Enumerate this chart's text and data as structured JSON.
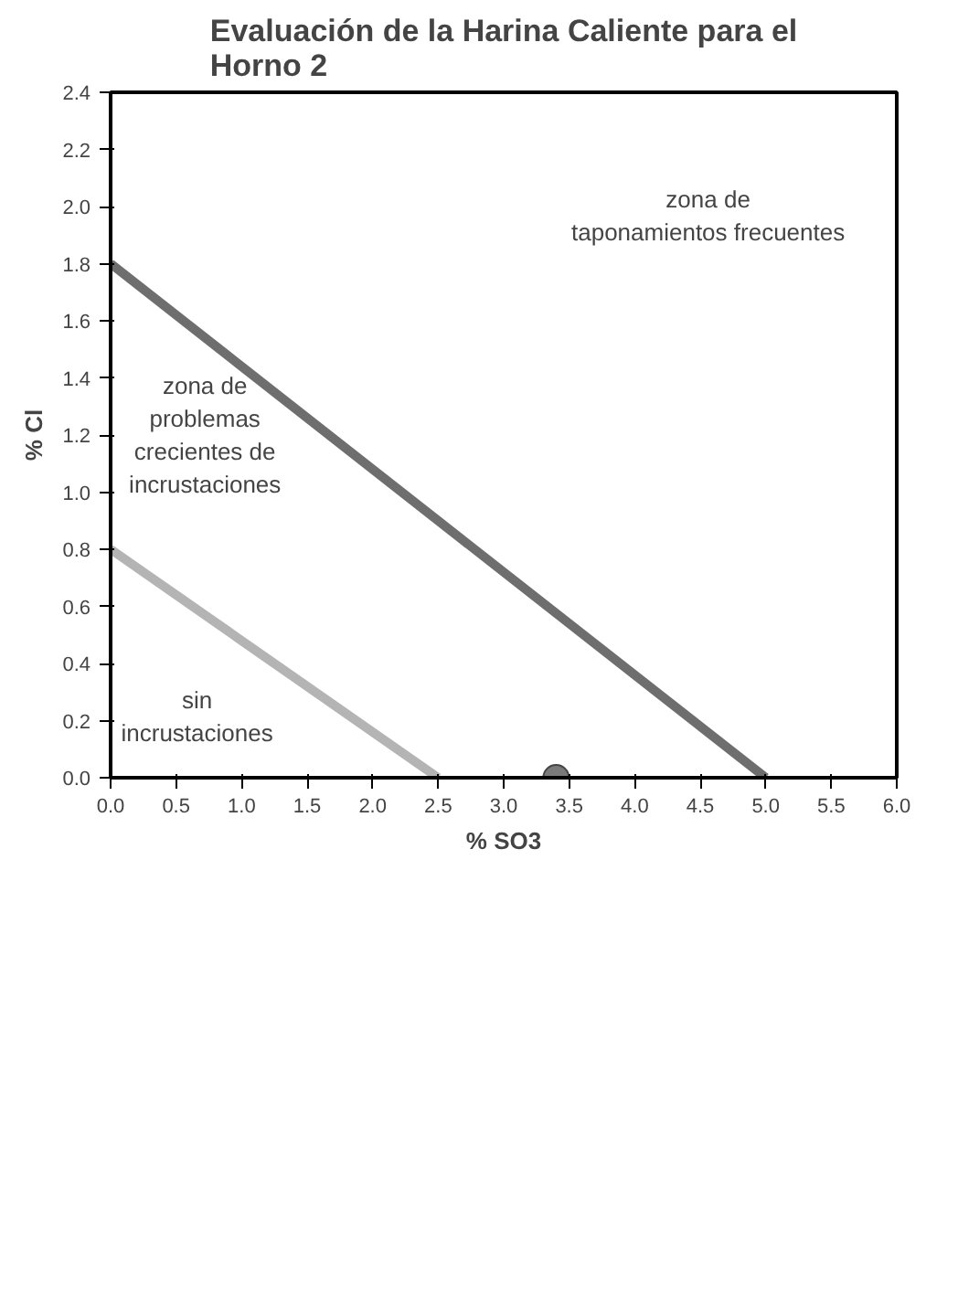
{
  "chart_data": {
    "type": "line",
    "title": "Evaluación de la Harina Caliente para el\nHorno 2",
    "xlabel": "% SO3",
    "ylabel": "% Cl",
    "xlim": [
      0,
      6
    ],
    "xticks": [
      {
        "value": 0,
        "label": "0.0"
      },
      0.5,
      {
        "value": 1,
        "label": "1.0"
      },
      1.5,
      {
        "value": 2,
        "label": "2.0"
      },
      2.5,
      {
        "value": 3,
        "label": "3.0"
      },
      3.5,
      {
        "value": 4,
        "label": "4.0"
      },
      4.5,
      {
        "value": 5,
        "label": "5.0"
      },
      5.5,
      {
        "value": 6,
        "label": "6.0"
      }
    ],
    "ylim": [
      0,
      2.4
    ],
    "yticks": [
      {
        "value": 0,
        "label": "0.0"
      },
      0.2,
      0.4,
      0.6,
      0.8,
      {
        "value": 1,
        "label": "1.0"
      },
      1.2,
      1.4,
      1.6,
      1.8,
      {
        "value": 2,
        "label": "2.0"
      },
      2.2,
      2.4
    ],
    "grid": false,
    "series": [
      {
        "color": "#6e6e6e",
        "x": [
          0,
          5.0
        ],
        "values": [
          1.8,
          0
        ]
      },
      {
        "color": "#b4b4b4",
        "x": [
          0,
          2.5
        ],
        "values": [
          0.8,
          0
        ]
      },
      {
        "type": "scatter",
        "color": "#7a7a7a",
        "marker": "circle",
        "x": [
          3.4
        ],
        "values": [
          0
        ]
      }
    ],
    "annotations": [
      "zona de\ntaponamientos frecuentes",
      "zona de\nproblemas\ncrecientes de\nincrustaciones",
      "sin\nincrustaciones"
    ]
  }
}
